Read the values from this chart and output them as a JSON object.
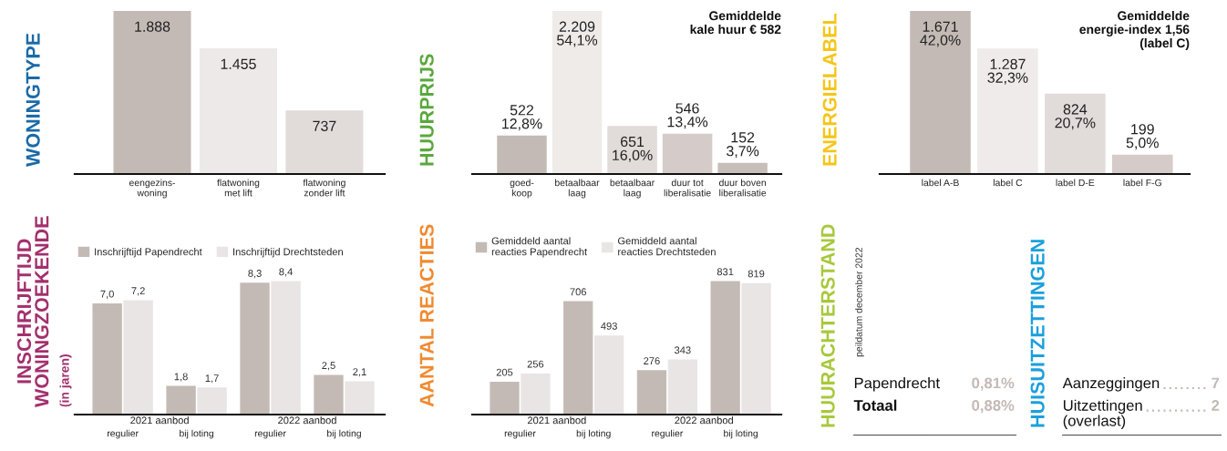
{
  "chart_data": [
    {
      "type": "bar",
      "title": "WONINGTYPE",
      "categories": [
        "eengezins-\nwoning",
        "flatwoning\nmet lift",
        "flatwoning\nzonder lift"
      ],
      "values": [
        1888,
        1455,
        737
      ],
      "colors": [
        "#c4bab5",
        "#ede9e8",
        "#e1dcda"
      ],
      "value_labels": [
        "1.888",
        "1.455",
        "737"
      ]
    },
    {
      "type": "bar",
      "title": "HUURPRIJS",
      "annotations": [
        "Gemiddelde\nkale huur € 582"
      ],
      "categories": [
        "goed-\nkoop",
        "betaalbaar\nlaag",
        "betaalbaar\nlaag",
        "duur tot\nliberalisatie",
        "duur boven\nliberalisatie"
      ],
      "values": [
        522,
        2209,
        651,
        546,
        152
      ],
      "colors": [
        "#c4bab5",
        "#efebe9",
        "#e1dcda",
        "#d5cbc8",
        "#c8beb9"
      ],
      "value_labels": [
        "522\n12,8%",
        "2.209\n54,1%",
        "651\n16,0%",
        "546\n13,4%",
        "152\n3,7%"
      ]
    },
    {
      "type": "bar",
      "title": "ENERGIELABEL",
      "annotations": [
        "Gemiddelde\nenergie-index 1,56\n(label C)"
      ],
      "categories": [
        "label A-B",
        "label C",
        "label D-E",
        "label F-G"
      ],
      "values": [
        1671,
        1287,
        824,
        199
      ],
      "colors": [
        "#c4bab5",
        "#efebea",
        "#e1dcda",
        "#d5cbc8"
      ],
      "value_labels": [
        "1.671\n42,0%",
        "1.287\n32,3%",
        "824\n20,7%",
        "199\n5,0%"
      ]
    },
    {
      "type": "bar",
      "title": "INSCHRIJFTIJD\nWONINGZOEKENDE",
      "subtitle": "(in jaren)",
      "annotations": [
        "2021 aanbod",
        "2022 aanbod"
      ],
      "categories": [
        "regulier",
        "bij loting",
        "regulier",
        "bij loting"
      ],
      "legend": "top left",
      "series": [
        {
          "name": "Inschrijftijd Papendrecht",
          "color": "#c4bab5",
          "values": [
            7.0,
            1.8,
            8.3,
            2.5
          ],
          "value_labels": [
            "7,0",
            "1,8",
            "8,3",
            "2,5"
          ]
        },
        {
          "name": "Inschrijftijd Drechtsteden",
          "color": "#e9e5e4",
          "values": [
            7.2,
            1.7,
            8.4,
            2.1
          ],
          "value_labels": [
            "7,2",
            "1,7",
            "8,4",
            "2,1"
          ]
        }
      ]
    },
    {
      "type": "bar",
      "title": "AANTAL REACTIES",
      "annotations": [
        "2021 aanbod",
        "2022 aanbod"
      ],
      "categories": [
        "regulier",
        "bij loting",
        "regulier",
        "bij loting"
      ],
      "legend": "top left",
      "series": [
        {
          "name": "Gemiddeld aantal\nreacties Papendrecht",
          "color": "#c4bab5",
          "values": [
            205,
            706,
            276,
            831
          ],
          "value_labels": [
            "205",
            "706",
            "276",
            "831"
          ]
        },
        {
          "name": "Gemiddeld aantal\nreacties Drechtsteden",
          "color": "#e9e5e4",
          "values": [
            256,
            493,
            343,
            819
          ],
          "value_labels": [
            "256",
            "493",
            "343",
            "819"
          ]
        }
      ]
    },
    {
      "type": "other",
      "title": "HUURACHTERSTAND",
      "subtitle": "peildatum december 2022",
      "categories": [
        "Papendrecht",
        "Totaal"
      ],
      "value_labels": [
        "0,81%",
        "0,88%"
      ]
    },
    {
      "type": "other",
      "title": "HUISUITZETTINGEN",
      "categories": [
        "Aanzeggingen",
        "Uitzettingen\n(overlast)"
      ],
      "value_labels": [
        "7",
        "2"
      ]
    }
  ]
}
